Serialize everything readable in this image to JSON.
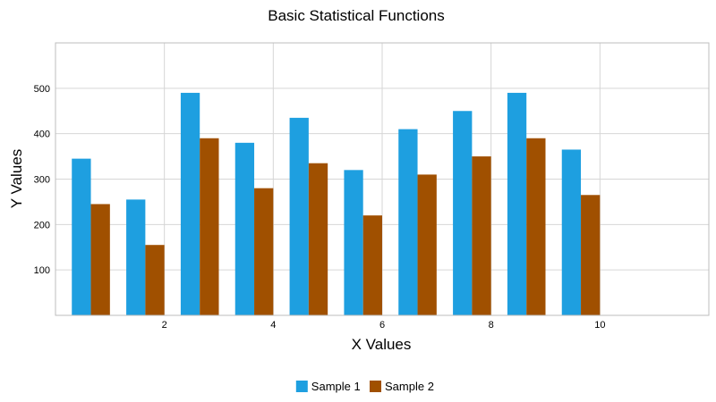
{
  "chart_data": {
    "type": "bar",
    "title": "Basic Statistical Functions",
    "xlabel": "X Values",
    "ylabel": "Y Values",
    "x": [
      1,
      2,
      3,
      4,
      5,
      6,
      7,
      8,
      9,
      10
    ],
    "xlim": [
      0,
      12
    ],
    "ylim": [
      0,
      600
    ],
    "x_ticks": [
      2,
      4,
      6,
      8,
      10
    ],
    "y_ticks": [
      100,
      200,
      300,
      400,
      500
    ],
    "grid": true,
    "legend_position": "bottom-center",
    "series": [
      {
        "name": "Sample 1",
        "color": "#1e9fe0",
        "values": [
          345,
          255,
          490,
          380,
          435,
          320,
          410,
          450,
          490,
          365
        ]
      },
      {
        "name": "Sample 2",
        "color": "#a05000",
        "values": [
          245,
          155,
          390,
          280,
          335,
          220,
          310,
          350,
          390,
          265
        ]
      }
    ]
  }
}
